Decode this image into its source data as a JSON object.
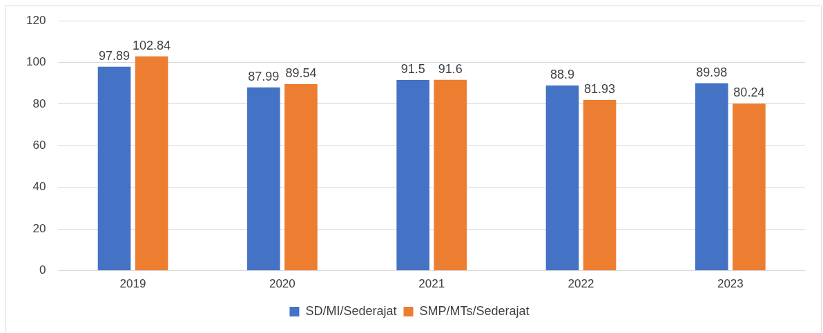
{
  "chart_data": {
    "type": "bar",
    "categories": [
      "2019",
      "2020",
      "2021",
      "2022",
      "2023"
    ],
    "series": [
      {
        "name": "SD/MI/Sederajat",
        "color": "#4472c4",
        "values": [
          97.89,
          87.99,
          91.5,
          88.9,
          89.98
        ]
      },
      {
        "name": "SMP/MTs/Sederajat",
        "color": "#ed7d31",
        "values": [
          102.84,
          89.54,
          91.6,
          81.93,
          80.24
        ]
      }
    ],
    "ylim": [
      0,
      120
    ],
    "yticks": [
      0,
      20,
      40,
      60,
      80,
      100,
      120
    ],
    "grid": "y",
    "legend": "bottom",
    "data_labels": true
  }
}
